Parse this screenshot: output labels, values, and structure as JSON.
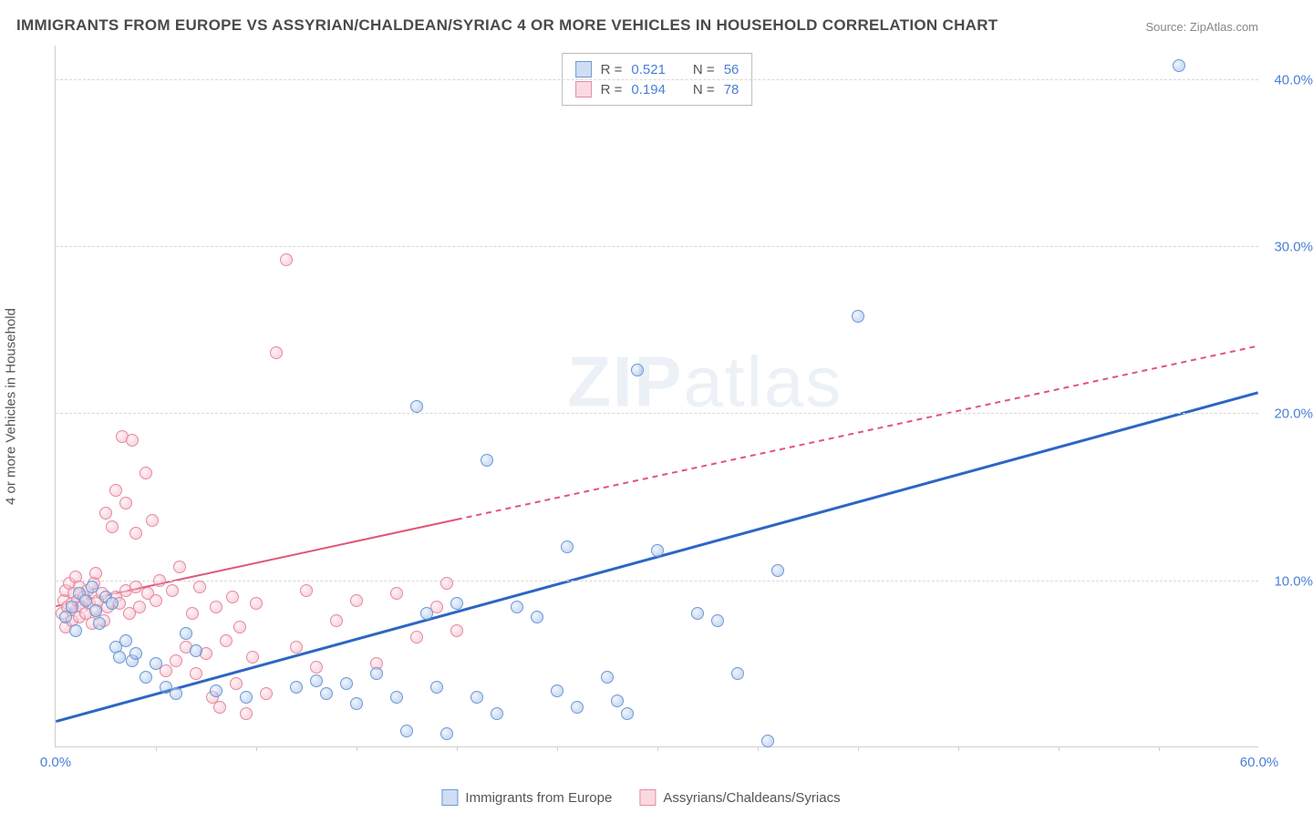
{
  "title": "IMMIGRANTS FROM EUROPE VS ASSYRIAN/CHALDEAN/SYRIAC 4 OR MORE VEHICLES IN HOUSEHOLD CORRELATION CHART",
  "source": "Source: ZipAtlas.com",
  "y_axis_label": "4 or more Vehicles in Household",
  "watermark": {
    "bold": "ZIP",
    "light": "atlas"
  },
  "chart": {
    "type": "scatter",
    "xlim": [
      0,
      60
    ],
    "ylim": [
      0,
      42
    ],
    "x_ticks": [
      0.0,
      60.0
    ],
    "x_tick_marks": [
      5,
      10,
      15,
      20,
      25,
      30,
      35,
      40,
      45,
      50,
      55
    ],
    "y_ticks": [
      10.0,
      20.0,
      30.0,
      40.0
    ],
    "x_tick_format": "pct1",
    "y_tick_format": "pct1",
    "background_color": "#ffffff",
    "grid_color": "#d8d8d8",
    "series": [
      {
        "key": "blue",
        "label": "Immigrants from Europe",
        "color": "#6a99d8",
        "fill": "rgba(120,160,220,0.35)",
        "R": "0.521",
        "N": "56",
        "regression": {
          "x1": 0,
          "y1": 1.5,
          "x2": 60,
          "y2": 21.2,
          "stroke": "#2e66c4",
          "width": 3,
          "dash": ""
        },
        "points": [
          [
            0.5,
            7.8
          ],
          [
            0.8,
            8.4
          ],
          [
            1.2,
            9.2
          ],
          [
            1.0,
            7.0
          ],
          [
            1.5,
            8.8
          ],
          [
            1.8,
            9.6
          ],
          [
            2.0,
            8.2
          ],
          [
            2.2,
            7.4
          ],
          [
            2.5,
            9.0
          ],
          [
            2.8,
            8.6
          ],
          [
            3.0,
            6.0
          ],
          [
            3.2,
            5.4
          ],
          [
            3.5,
            6.4
          ],
          [
            3.8,
            5.2
          ],
          [
            4.0,
            5.6
          ],
          [
            4.5,
            4.2
          ],
          [
            5.0,
            5.0
          ],
          [
            5.5,
            3.6
          ],
          [
            6.0,
            3.2
          ],
          [
            6.5,
            6.8
          ],
          [
            7.0,
            5.8
          ],
          [
            8.0,
            3.4
          ],
          [
            9.5,
            3.0
          ],
          [
            12.0,
            3.6
          ],
          [
            13.0,
            4.0
          ],
          [
            13.5,
            3.2
          ],
          [
            14.5,
            3.8
          ],
          [
            15.0,
            2.6
          ],
          [
            16.0,
            4.4
          ],
          [
            17.0,
            3.0
          ],
          [
            17.5,
            1.0
          ],
          [
            18.0,
            20.4
          ],
          [
            18.5,
            8.0
          ],
          [
            19.0,
            3.6
          ],
          [
            19.5,
            0.8
          ],
          [
            20.0,
            8.6
          ],
          [
            21.0,
            3.0
          ],
          [
            21.5,
            17.2
          ],
          [
            22.0,
            2.0
          ],
          [
            23.0,
            8.4
          ],
          [
            24.0,
            7.8
          ],
          [
            25.0,
            3.4
          ],
          [
            25.5,
            12.0
          ],
          [
            26.0,
            2.4
          ],
          [
            27.5,
            4.2
          ],
          [
            28.0,
            2.8
          ],
          [
            29.0,
            22.6
          ],
          [
            30.0,
            11.8
          ],
          [
            32.0,
            8.0
          ],
          [
            33.0,
            7.6
          ],
          [
            34.0,
            4.4
          ],
          [
            35.5,
            0.4
          ],
          [
            36.0,
            10.6
          ],
          [
            40.0,
            25.8
          ],
          [
            56.0,
            40.8
          ],
          [
            28.5,
            2.0
          ]
        ]
      },
      {
        "key": "pink",
        "label": "Assyrians/Chaldeans/Syriacs",
        "color": "#e48aa2",
        "fill": "rgba(240,150,170,0.35)",
        "R": "0.194",
        "N": "78",
        "regression": {
          "x1": 0,
          "y1": 8.4,
          "x2": 60,
          "y2": 24.0,
          "stroke": "#e05577",
          "width": 2,
          "solid_until_x": 20,
          "dash": "6,5"
        },
        "points": [
          [
            0.3,
            8.0
          ],
          [
            0.4,
            8.8
          ],
          [
            0.5,
            9.4
          ],
          [
            0.5,
            7.2
          ],
          [
            0.6,
            8.4
          ],
          [
            0.7,
            9.8
          ],
          [
            0.8,
            8.6
          ],
          [
            0.8,
            7.6
          ],
          [
            0.9,
            9.2
          ],
          [
            1.0,
            8.2
          ],
          [
            1.0,
            10.2
          ],
          [
            1.1,
            8.8
          ],
          [
            1.2,
            9.6
          ],
          [
            1.2,
            7.8
          ],
          [
            1.3,
            8.4
          ],
          [
            1.4,
            9.0
          ],
          [
            1.5,
            8.0
          ],
          [
            1.6,
            9.4
          ],
          [
            1.7,
            8.6
          ],
          [
            1.8,
            7.4
          ],
          [
            1.9,
            9.8
          ],
          [
            2.0,
            8.2
          ],
          [
            2.0,
            10.4
          ],
          [
            2.1,
            8.8
          ],
          [
            2.3,
            9.2
          ],
          [
            2.4,
            7.6
          ],
          [
            2.5,
            14.0
          ],
          [
            2.6,
            8.4
          ],
          [
            2.8,
            13.2
          ],
          [
            3.0,
            9.0
          ],
          [
            3.0,
            15.4
          ],
          [
            3.2,
            8.6
          ],
          [
            3.3,
            18.6
          ],
          [
            3.5,
            9.4
          ],
          [
            3.5,
            14.6
          ],
          [
            3.7,
            8.0
          ],
          [
            3.8,
            18.4
          ],
          [
            4.0,
            9.6
          ],
          [
            4.0,
            12.8
          ],
          [
            4.2,
            8.4
          ],
          [
            4.5,
            16.4
          ],
          [
            4.6,
            9.2
          ],
          [
            4.8,
            13.6
          ],
          [
            5.0,
            8.8
          ],
          [
            5.2,
            10.0
          ],
          [
            5.5,
            4.6
          ],
          [
            5.8,
            9.4
          ],
          [
            6.0,
            5.2
          ],
          [
            6.2,
            10.8
          ],
          [
            6.5,
            6.0
          ],
          [
            6.8,
            8.0
          ],
          [
            7.0,
            4.4
          ],
          [
            7.2,
            9.6
          ],
          [
            7.5,
            5.6
          ],
          [
            7.8,
            3.0
          ],
          [
            8.0,
            8.4
          ],
          [
            8.2,
            2.4
          ],
          [
            8.5,
            6.4
          ],
          [
            8.8,
            9.0
          ],
          [
            9.0,
            3.8
          ],
          [
            9.2,
            7.2
          ],
          [
            9.5,
            2.0
          ],
          [
            9.8,
            5.4
          ],
          [
            10.0,
            8.6
          ],
          [
            10.5,
            3.2
          ],
          [
            11.0,
            23.6
          ],
          [
            11.5,
            29.2
          ],
          [
            12.0,
            6.0
          ],
          [
            12.5,
            9.4
          ],
          [
            13.0,
            4.8
          ],
          [
            14.0,
            7.6
          ],
          [
            15.0,
            8.8
          ],
          [
            16.0,
            5.0
          ],
          [
            17.0,
            9.2
          ],
          [
            18.0,
            6.6
          ],
          [
            19.0,
            8.4
          ],
          [
            19.5,
            9.8
          ],
          [
            20.0,
            7.0
          ]
        ]
      }
    ]
  },
  "legend_top": {
    "rows": [
      {
        "swatch": "blue",
        "r_label": "R =",
        "r_val": "0.521",
        "n_label": "N =",
        "n_val": "56"
      },
      {
        "swatch": "pink",
        "r_label": "R =",
        "r_val": "0.194",
        "n_label": "N =",
        "n_val": "78"
      }
    ]
  },
  "legend_bottom": {
    "items": [
      {
        "swatch": "blue",
        "label": "Immigrants from Europe"
      },
      {
        "swatch": "pink",
        "label": "Assyrians/Chaldeans/Syriacs"
      }
    ]
  }
}
